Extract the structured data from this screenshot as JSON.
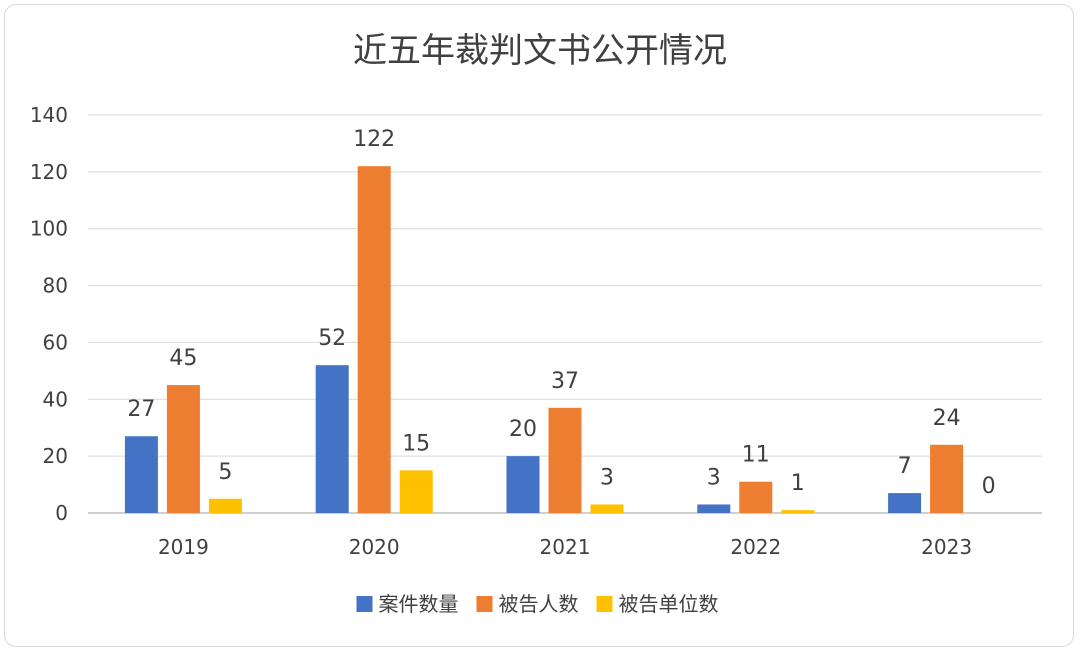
{
  "chart_data": {
    "type": "bar",
    "title": "近五年裁判文书公开情况",
    "xlabel": "",
    "ylabel": "",
    "categories": [
      "2019",
      "2020",
      "2021",
      "2022",
      "2023"
    ],
    "series": [
      {
        "name": "案件数量",
        "values": [
          27,
          52,
          20,
          3,
          7
        ],
        "color": "#4472c4"
      },
      {
        "name": "被告人数",
        "values": [
          45,
          122,
          37,
          11,
          24
        ],
        "color": "#ed7d31"
      },
      {
        "name": "被告单位数",
        "values": [
          5,
          15,
          3,
          1,
          0
        ],
        "color": "#ffc000"
      }
    ],
    "ylim": [
      0,
      140
    ],
    "yticks": [
      0,
      20,
      40,
      60,
      80,
      100,
      120,
      140
    ],
    "grid": true,
    "legend_position": "bottom"
  }
}
